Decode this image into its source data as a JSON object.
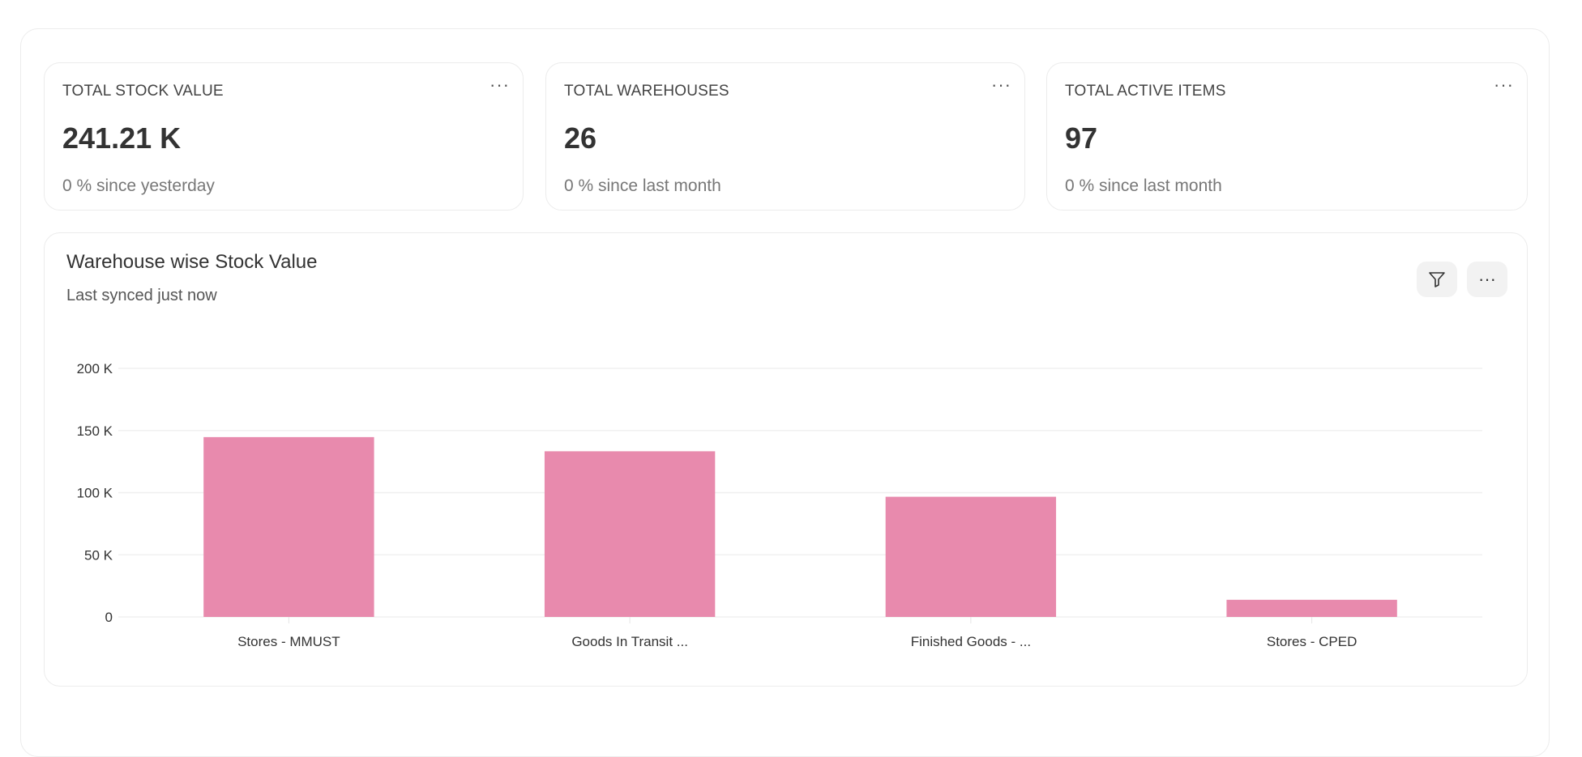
{
  "cards": [
    {
      "label": "TOTAL STOCK VALUE",
      "value": "241.21 K",
      "sub": "0 % since yesterday"
    },
    {
      "label": "TOTAL WAREHOUSES",
      "value": "26",
      "sub": "0 % since last month"
    },
    {
      "label": "TOTAL ACTIVE ITEMS",
      "value": "97",
      "sub": "0 % since last month"
    }
  ],
  "card_menu_icon": "more-horizontal-icon",
  "chart_card": {
    "title": "Warehouse wise Stock Value",
    "subtitle": "Last synced just now",
    "filter_icon": "filter-icon",
    "menu_icon": "more-horizontal-icon",
    "menu_label": "···"
  },
  "chart_data": {
    "type": "bar",
    "title": "Warehouse wise Stock Value",
    "categories": [
      "Stores - MMUST",
      "Goods In Transit ...",
      "Finished Goods - ...",
      "Stores - CPED"
    ],
    "values": [
      144700,
      133300,
      96700,
      13800
    ],
    "ylim": [
      0,
      200000
    ],
    "yticks": [
      0,
      50000,
      100000,
      150000,
      200000
    ],
    "ytick_labels": [
      "0",
      "50 K",
      "100 K",
      "150 K",
      "200 K"
    ],
    "grid": true,
    "color": "#e88aad"
  }
}
